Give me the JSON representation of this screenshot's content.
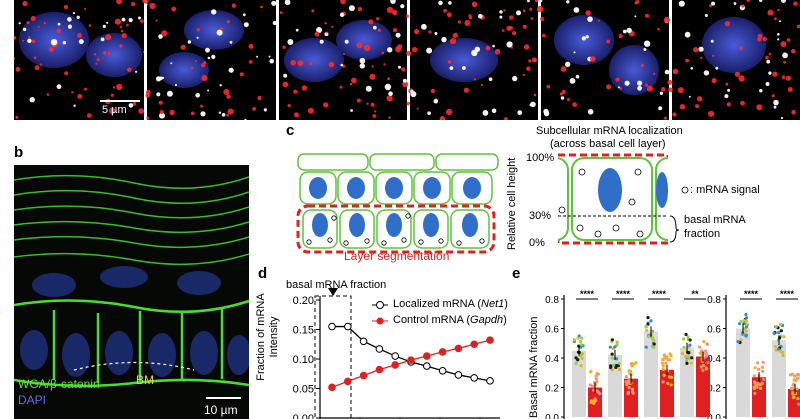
{
  "panel_a": {
    "scale_label": "5 µm"
  },
  "panel_b": {
    "letter": "b",
    "stain_1": "WGA/β-catenin",
    "stain_2": "DAPI",
    "bm_label": "BM",
    "scale_label": "10 µm"
  },
  "panel_c": {
    "letter": "c",
    "title_line1": "Subcellular mRNA localization",
    "title_line2": "(across basal cell layer)",
    "seg_label": "Layer segmentation",
    "y_axis_label": "Relative cell height",
    "tick_100": "100%",
    "tick_30": "30%",
    "tick_0": "0%",
    "legend_signal": ": mRNA signal",
    "basal_line1": "basal mRNA",
    "basal_line2": "fraction"
  },
  "panel_d": {
    "letter": "d",
    "annotation": "basal mRNA fraction",
    "ylabel_line1": "Fraction of mRNA",
    "ylabel_line2": "Intensity",
    "legend_1_prefix": "Localized mRNA (",
    "legend_1_gene": "Net1",
    "legend_1_suffix": ")",
    "legend_2_prefix": "Control mRNA (",
    "legend_2_gene": "Gapdh",
    "legend_2_suffix": ")",
    "y_ticks": [
      "0.00",
      "0.05",
      "0.10",
      "0.15",
      "0.20"
    ]
  },
  "panel_e": {
    "letter": "e",
    "ylabel": "Basal mRNA fraction",
    "y_ticks": [
      "0.0",
      "0.2",
      "0.4",
      "0.6",
      "0.8"
    ],
    "sig_labels": [
      "****",
      "****",
      "****",
      "**",
      "****",
      "****"
    ]
  },
  "colors": {
    "localized": "#000000",
    "control": "#e02020",
    "bar_gray": "#d9d9d9",
    "membrane": "#5ec43a",
    "nucleus": "#3b6fc4",
    "segmentation": "#e02020"
  },
  "chart_data": [
    {
      "type": "line",
      "ylabel": "Fraction of mRNA Intensity",
      "ylim": [
        0,
        0.2
      ],
      "series": [
        {
          "name": "Localized mRNA (Net1)",
          "values": [
            0.155,
            0.155,
            0.13,
            0.117,
            0.105,
            0.095,
            0.088,
            0.08,
            0.073,
            0.068,
            0.063
          ]
        },
        {
          "name": "Control mRNA (Gapdh)",
          "values": [
            0.052,
            0.062,
            0.072,
            0.082,
            0.09,
            0.098,
            0.105,
            0.112,
            0.118,
            0.125,
            0.132
          ]
        }
      ]
    },
    {
      "type": "bar",
      "ylabel": "Basal mRNA fraction",
      "ylim": [
        0,
        0.8
      ],
      "series": [
        {
          "values": [
            0.45,
            0.42,
            0.58,
            0.47,
            0.6,
            0.52
          ]
        },
        {
          "values": [
            0.2,
            0.26,
            0.32,
            0.41,
            0.27,
            0.19
          ]
        }
      ]
    }
  ]
}
